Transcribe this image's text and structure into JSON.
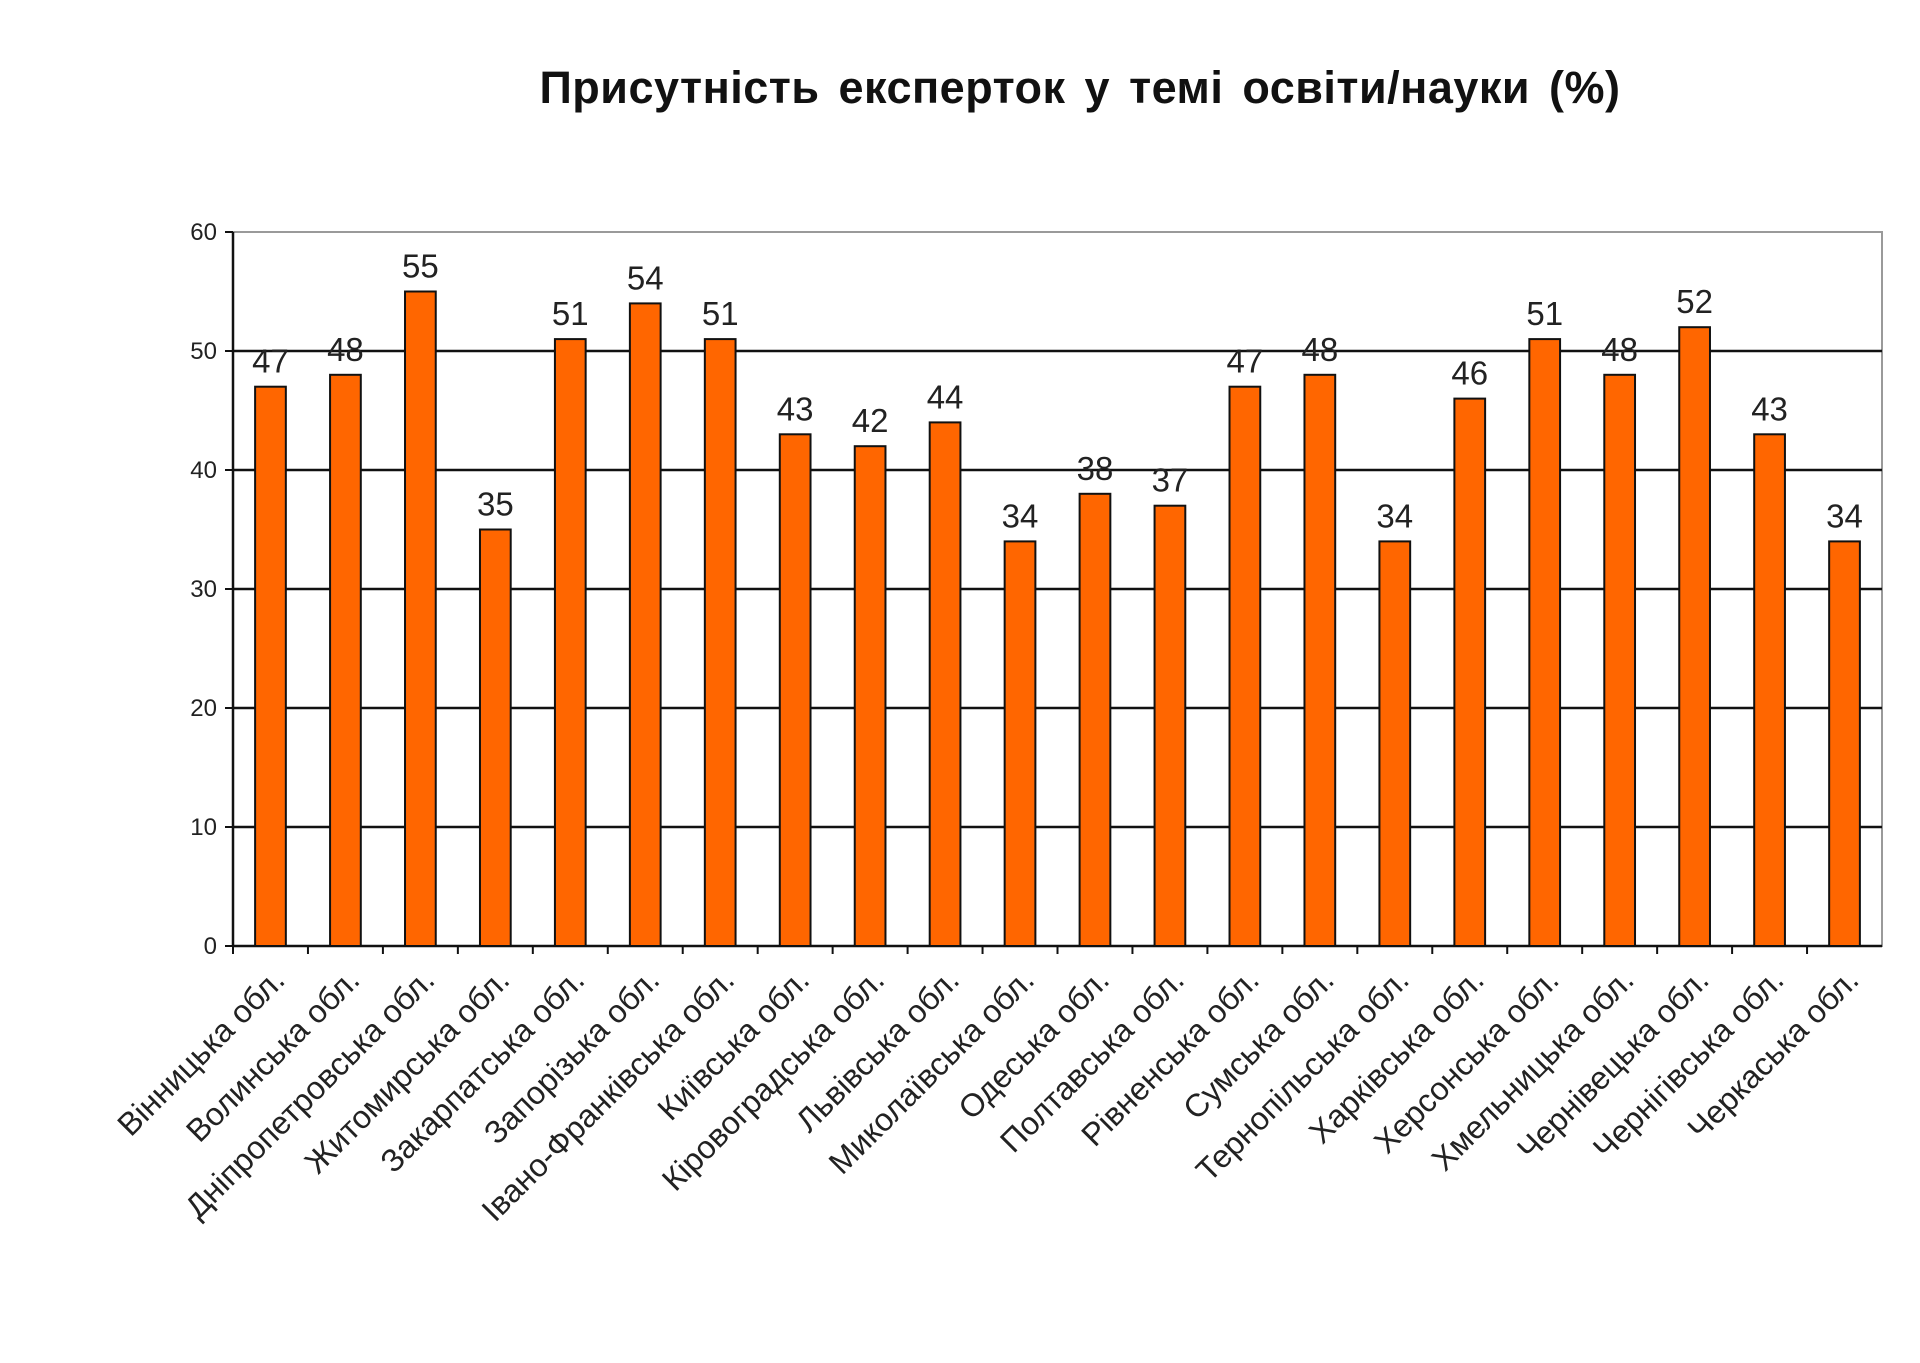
{
  "chart_data": {
    "type": "bar",
    "title": "Присутність  експерток у темі освіти/науки  (%)",
    "xlabel": "",
    "ylabel": "",
    "ylim": [
      0,
      60
    ],
    "yticks": [
      0,
      10,
      20,
      30,
      40,
      50,
      60
    ],
    "grid": true,
    "legend": "none",
    "bar_color": "#FF6600",
    "bar_border_color": "#111111",
    "categories": [
      "Вінницька обл.",
      "Волинська обл.",
      "Дніпропетровська обл.",
      "Житомирська обл.",
      "Закарпатська обл.",
      "Запорізька обл.",
      "Івано-Франківська обл.",
      "Київська обл.",
      "Кіровоградська обл.",
      "Львівська обл.",
      "Миколаївська обл.",
      "Одеська обл.",
      "Полтавська обл.",
      "Рівненська обл.",
      "Сумська обл.",
      "Тернопільська  обл.",
      "Харківська обл.",
      "Херсонська обл.",
      "Хмельницька обл.",
      "Чернівецька обл.",
      "Чернігівська обл.",
      "Черкаська обл."
    ],
    "values": [
      47,
      48,
      55,
      35,
      51,
      54,
      51,
      43,
      42,
      44,
      34,
      38,
      37,
      47,
      48,
      34,
      46,
      51,
      48,
      52,
      43,
      34
    ]
  }
}
